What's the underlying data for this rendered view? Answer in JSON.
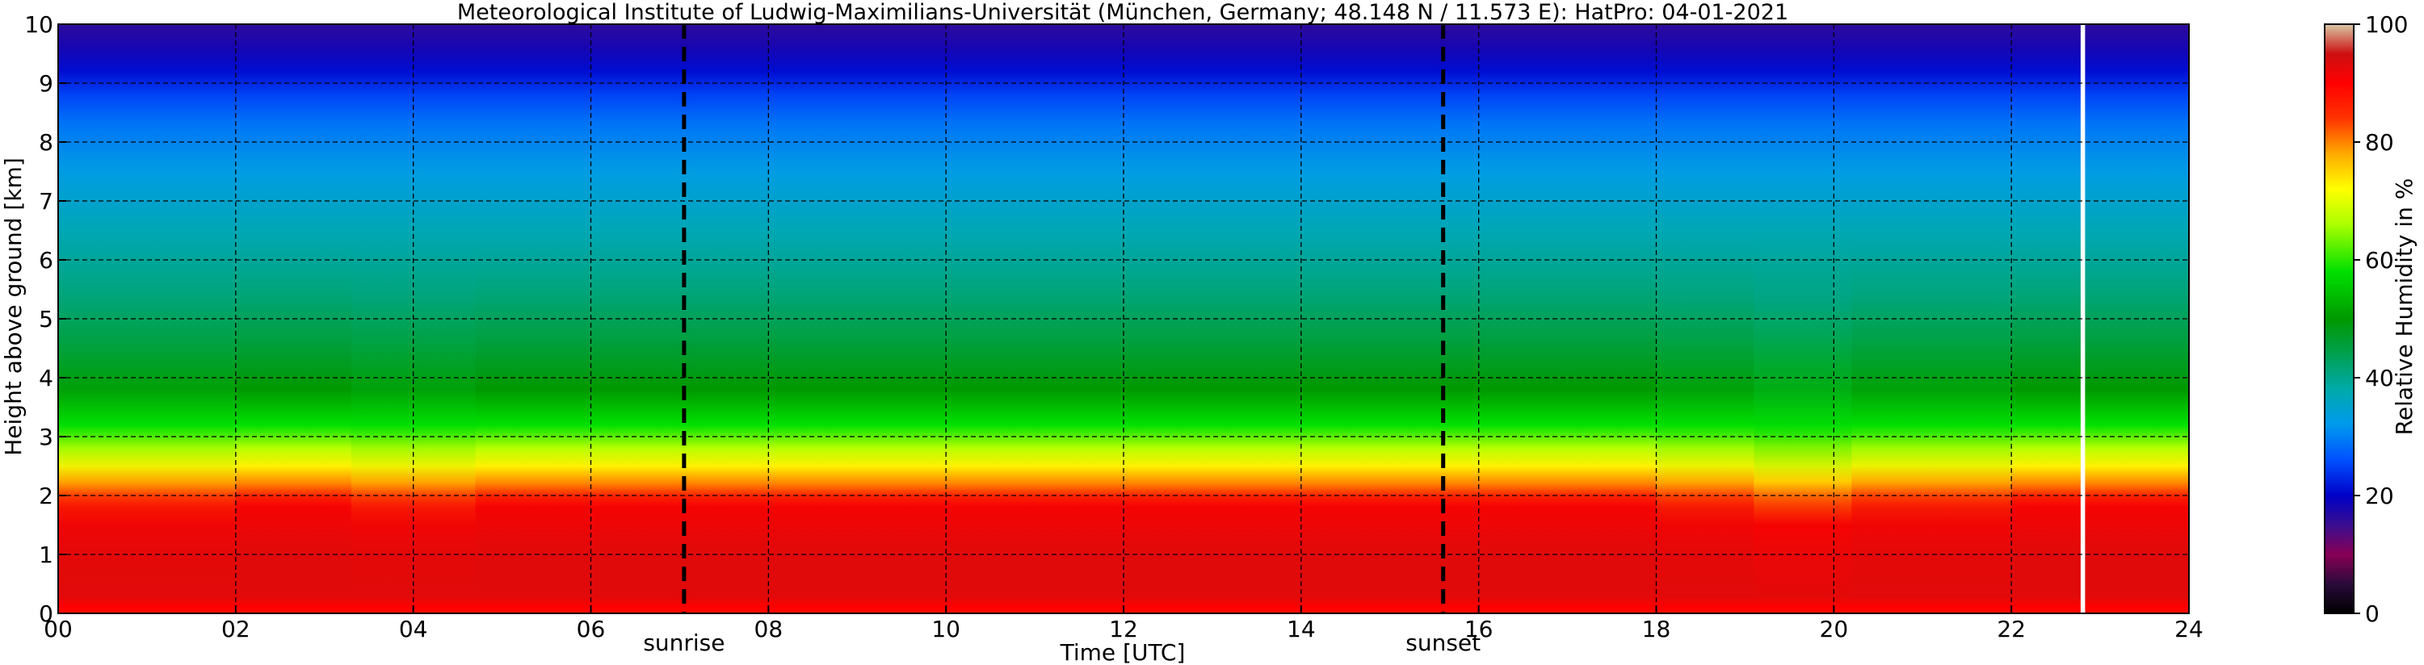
{
  "chart_data": {
    "type": "heatmap",
    "title": "Meteorological Institute of Ludwig-Maximilians-Universität (München, Germany; 48.148 N / 11.573 E):    HatPro: 04-01-2021",
    "xlabel": "Time [UTC]",
    "ylabel": "Height above ground [km]",
    "xlim": [
      0,
      24
    ],
    "ylim": [
      0,
      10
    ],
    "x_ticks": [
      "00",
      "02",
      "04",
      "06",
      "08",
      "10",
      "12",
      "14",
      "16",
      "18",
      "20",
      "22",
      "24"
    ],
    "y_ticks": [
      "0",
      "1",
      "2",
      "3",
      "4",
      "5",
      "6",
      "7",
      "8",
      "9",
      "10"
    ],
    "grid": true,
    "colorbar": {
      "label": "Relative Humidity in %",
      "range": [
        0,
        100
      ],
      "ticks": [
        "0",
        "20",
        "40",
        "60",
        "80",
        "100"
      ],
      "colors": [
        {
          "v": 0,
          "c": "#000000"
        },
        {
          "v": 5,
          "c": "#2a0a3a"
        },
        {
          "v": 10,
          "c": "#880055"
        },
        {
          "v": 15,
          "c": "#3a0e90"
        },
        {
          "v": 20,
          "c": "#0000c8"
        },
        {
          "v": 26,
          "c": "#0050ff"
        },
        {
          "v": 32,
          "c": "#0099ee"
        },
        {
          "v": 38,
          "c": "#00aaaa"
        },
        {
          "v": 44,
          "c": "#00a050"
        },
        {
          "v": 50,
          "c": "#009900"
        },
        {
          "v": 58,
          "c": "#00e000"
        },
        {
          "v": 66,
          "c": "#aaff00"
        },
        {
          "v": 72,
          "c": "#ffff00"
        },
        {
          "v": 78,
          "c": "#ffaa00"
        },
        {
          "v": 84,
          "c": "#ff3300"
        },
        {
          "v": 90,
          "c": "#ff0000"
        },
        {
          "v": 95,
          "c": "#cc1010"
        },
        {
          "v": 100,
          "c": "#d9c9a5"
        }
      ]
    },
    "rh_profile": [
      {
        "height_km": 0.0,
        "rh": 88
      },
      {
        "height_km": 0.1,
        "rh": 90
      },
      {
        "height_km": 0.3,
        "rh": 93
      },
      {
        "height_km": 1.0,
        "rh": 93
      },
      {
        "height_km": 1.8,
        "rh": 91
      },
      {
        "height_km": 2.0,
        "rh": 86
      },
      {
        "height_km": 2.2,
        "rh": 80
      },
      {
        "height_km": 2.5,
        "rh": 73
      },
      {
        "height_km": 2.8,
        "rh": 67
      },
      {
        "height_km": 3.2,
        "rh": 58
      },
      {
        "height_km": 3.8,
        "rh": 50
      },
      {
        "height_km": 4.5,
        "rh": 46
      },
      {
        "height_km": 5.5,
        "rh": 41
      },
      {
        "height_km": 6.5,
        "rh": 37
      },
      {
        "height_km": 7.5,
        "rh": 33
      },
      {
        "height_km": 8.3,
        "rh": 29
      },
      {
        "height_km": 8.8,
        "rh": 25
      },
      {
        "height_km": 9.2,
        "rh": 21
      },
      {
        "height_km": 9.6,
        "rh": 18
      },
      {
        "height_km": 10.0,
        "rh": 16
      }
    ],
    "moist_periods": [
      {
        "start": 0.0,
        "end": 2.0,
        "intensity": 0.5
      },
      {
        "start": 3.3,
        "end": 4.7,
        "intensity": 0.55
      },
      {
        "start": 18.0,
        "end": 22.0,
        "intensity": 0.6
      },
      {
        "start": 19.1,
        "end": 20.2,
        "intensity": 1.0
      }
    ],
    "no_data": [
      {
        "start": 22.78,
        "end": 22.83
      }
    ],
    "events": [
      {
        "name": "sunrise",
        "time": 7.05
      },
      {
        "name": "sunset",
        "time": 15.6
      }
    ]
  }
}
